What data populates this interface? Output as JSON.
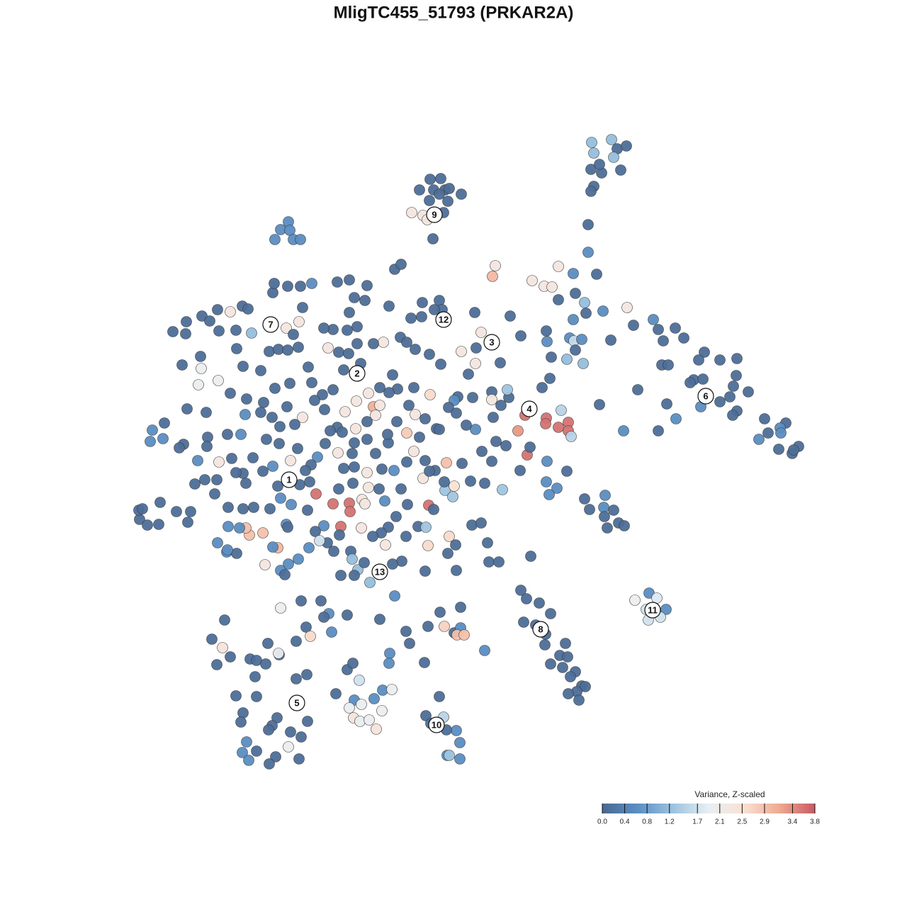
{
  "chart_data": {
    "type": "scatter",
    "title": "MligTC455_51793 (PRKAR2A)",
    "xlim": [
      0,
      1280
    ],
    "ylim": [
      1280,
      0
    ],
    "x": [
      607,
      622,
      592,
      612,
      628,
      620,
      634,
      651,
      606,
      632,
      581,
      597,
      603,
      626,
      611,
      835,
      863,
      838,
      871,
      884,
      866,
      834,
      849,
      846,
      876,
      838,
      834,
      830,
      830,
      407,
      396,
      409,
      388,
      414,
      424,
      741,
      771,
      770,
      788,
      802,
      802,
      731,
      744,
      792,
      806,
      699,
      695,
      751,
      768,
      779,
      788,
      809,
      842,
      885,
      851,
      812,
      788,
      825,
      827,
      809,
      771,
      772,
      804,
      810,
      821,
      812,
      800,
      823,
      778,
      776,
      765,
      862,
      894,
      922,
      929,
      953,
      965,
      936,
      934,
      943,
      994,
      986,
      1016,
      1040,
      979,
      992,
      974,
      1039,
      1030,
      1035,
      1056,
      989,
      1016,
      1040,
      1034,
      1079,
      1109,
      1101,
      1102,
      1084,
      1071,
      1099,
      1118,
      1127,
      1120,
      954,
      929,
      941,
      900,
      846,
      880,
      825,
      832,
      854,
      852,
      866,
      853,
      873,
      881,
      857,
      800,
      772,
      771,
      786,
      775,
      734,
      748,
      735,
      743,
      761,
      777,
      739,
      756,
      770,
      769,
      798,
      790,
      801,
      777,
      794,
      812,
      805,
      821,
      826,
      814,
      802,
      817,
      916,
      896,
      927,
      912,
      940,
      915,
      932,
      620,
      601,
      626,
      608,
      644,
      630,
      649,
      631,
      634,
      649,
      317,
      299,
      314,
      325,
      306,
      353,
      362,
      378,
      394,
      393,
      375,
      360,
      418,
      433,
      333,
      362,
      343,
      340,
      391,
      384,
      379,
      434,
      410,
      425,
      348,
      407,
      389,
      422,
      342,
      362,
      351,
      380,
      474,
      490,
      498,
      507,
      500,
      528,
      540,
      553,
      510,
      493,
      539,
      499,
      508,
      521,
      531,
      550,
      549,
      599,
      578,
      573,
      604,
      621,
      650,
      627,
      641,
      650,
      645,
      655,
      684,
      536,
      490,
      464,
      457,
      468,
      432,
      418,
      453,
      425,
      396,
      438,
      557,
      244,
      263,
      262,
      285,
      296,
      309,
      307,
      325,
      333,
      342,
      350,
      355,
      383,
      404,
      422,
      385,
      387,
      406,
      424,
      440,
      427,
      414,
      380,
      393,
      406,
      421,
      334,
      343,
      368,
      257,
      284,
      283,
      280,
      308,
      325,
      348,
      372,
      388,
      409,
      435,
      440,
      455,
      463,
      470,
      457,
      490,
      504,
      493,
      500,
      515,
      518,
      493,
      476,
      557,
      566,
      549,
      596,
      620,
      624,
      613,
      580,
      595,
      541,
      527,
      509,
      485,
      478,
      492,
      504,
      565,
      574,
      586,
      606,
      622,
      651,
      672,
      671,
      661,
      679,
      670,
      720,
      735,
      706,
      694,
      694,
      718,
      707,
      716,
      696,
      667,
      646,
      641,
      633,
      607,
      584,
      561,
      554,
      549,
      536,
      520,
      503,
      527,
      536,
      530,
      518,
      502,
      487,
      476,
      466,
      458,
      470,
      444,
      427,
      416,
      405,
      395,
      384,
      368,
      346,
      340,
      321,
      293,
      264,
      291,
      232,
      215,
      212,
      230,
      259,
      253,
      292,
      279,
      309,
      327,
      343,
      357,
      376,
      394,
      420,
      410,
      385,
      371,
      333,
      347,
      306,
      289,
      275,
      303,
      322,
      343,
      358,
      381,
      392,
      396,
      411,
      423,
      437,
      446,
      434,
      470,
      493,
      494,
      478,
      498,
      520,
      511,
      515,
      535,
      543,
      566,
      575,
      559,
      548,
      573,
      590,
      601,
      605,
      612,
      628,
      639,
      641,
      627,
      614,
      597,
      606,
      600,
      584,
      574,
      556,
      539,
      518,
      500,
      485,
      497,
      477,
      459,
      448,
      439,
      431,
      483,
      500,
      518,
      530,
      548,
      574,
      592,
      616,
      600,
      586,
      560,
      547,
      577,
      630,
      652,
      664,
      684,
      694,
      680,
      709,
      714,
      700,
      671,
      658,
      644,
      620,
      666,
      679,
      688,
      690,
      704,
      749,
      644,
      632,
      643,
      634,
      604,
      600,
      567,
      554,
      544,
      538,
      526,
      510,
      481,
      479,
      457,
      445,
      462,
      451,
      471,
      495,
      497,
      505,
      514,
      500,
      481,
      522,
      421,
      407,
      396,
      402,
      374,
      392,
      371,
      352,
      347,
      322,
      338,
      307,
      320,
      334,
      321,
      404,
      406,
      436,
      197,
      208,
      224,
      196,
      201,
      226,
      249,
      265,
      269,
      385
    ],
    "y": [
      253,
      252,
      268,
      268,
      268,
      274,
      266,
      274,
      283,
      284,
      300,
      304,
      310,
      300,
      337,
      201,
      197,
      216,
      210,
      206,
      222,
      239,
      244,
      232,
      240,
      263,
      270,
      317,
      356,
      313,
      324,
      325,
      338,
      338,
      338,
      586,
      590,
      598,
      603,
      596,
      608,
      608,
      642,
      579,
      616,
      375,
      390,
      396,
      404,
      405,
      376,
      386,
      387,
      434,
      439,
      414,
      423,
      427,
      442,
      451,
      467,
      482,
      477,
      481,
      479,
      494,
      507,
      513,
      504,
      534,
      547,
      480,
      459,
      451,
      465,
      463,
      477,
      481,
      515,
      515,
      497,
      508,
      508,
      506,
      536,
      535,
      540,
      530,
      560,
      545,
      553,
      574,
      567,
      580,
      586,
      591,
      597,
      604,
      611,
      611,
      620,
      634,
      640,
      630,
      635,
      591,
      608,
      570,
      550,
      571,
      608,
      704,
      719,
      699,
      716,
      720,
      729,
      738,
      742,
      745,
      665,
      651,
      680,
      689,
      698,
      664,
      631,
      833,
      845,
      851,
      866,
      878,
      882,
      895,
      910,
      908,
      925,
      927,
      937,
      942,
      948,
      955,
      968,
      969,
      976,
      979,
      988,
      837,
      847,
      844,
      860,
      860,
      875,
      871,
      983,
      1010,
      1012,
      1021,
      1031,
      1030,
      1048,
      1066,
      1066,
      1071,
      875,
      902,
      914,
      927,
      938,
      930,
      932,
      908,
      924,
      922,
      937,
      955,
      958,
      952,
      982,
      983,
      1006,
      1019,
      1013,
      1024,
      1030,
      1018,
      1033,
      1040,
      1047,
      1054,
      1068,
      1071,
      1062,
      1060,
      1073,
      1078,
      979,
      945,
      936,
      960,
      988,
      986,
      974,
      973,
      994,
      999,
      1003,
      1013,
      1018,
      1016,
      1029,
      922,
      936,
      935,
      908,
      891,
      884,
      864,
      857,
      884,
      893,
      886,
      896,
      896,
      918,
      874,
      868,
      866,
      871,
      892,
      885,
      905,
      848,
      848,
      858,
      898,
      841,
      468,
      454,
      471,
      446,
      453,
      467,
      437,
      440,
      466,
      432,
      436,
      470,
      458,
      463,
      454,
      413,
      400,
      404,
      404,
      400,
      434,
      472,
      496,
      493,
      494,
      490,
      492,
      517,
      523,
      515,
      520,
      503,
      543,
      537,
      555,
      563,
      568,
      548,
      541,
      518,
      540,
      557,
      491,
      465,
      463,
      466,
      461,
      441,
      420,
      424,
      403,
      395,
      398,
      380,
      373,
      432,
      427,
      424,
      437,
      437,
      449,
      447,
      483,
      485,
      513,
      522,
      497,
      499,
      485,
      476,
      483,
      493,
      500,
      514,
      496,
      491,
      513,
      528,
      469,
      441,
      446,
      474,
      512,
      553,
      564,
      561,
      572,
      550,
      589,
      561,
      560,
      565,
      575,
      557,
      547,
      549,
      529,
      554,
      547,
      555,
      566,
      574,
      572,
      586,
      595,
      605,
      581,
      603,
      608,
      578,
      550,
      565,
      589,
      599,
      574,
      602,
      589,
      582,
      585,
      613,
      613,
      617,
      577,
      582,
      597,
      607,
      623,
      619,
      627,
      632,
      630,
      650,
      652,
      647,
      668,
      646,
      620,
      626,
      633,
      650,
      658,
      665,
      667,
      682,
      677,
      677,
      683,
      697,
      716,
      718,
      716,
      718,
      686,
      703,
      712,
      684,
      680,
      697,
      720,
      711,
      710,
      722,
      690,
      682,
      688,
      705,
      711,
      690,
      707,
      690,
      712,
      729,
      744,
      757,
      743,
      744,
      713,
      719,
      692,
      701,
      686,
      680,
      664,
      675,
      665,
      650,
      637,
      652,
      664,
      662,
      667,
      659,
      661,
      640,
      639,
      626,
      645,
      656,
      664,
      610,
      625,
      620,
      640,
      625,
      611,
      617,
      605,
      591,
      585,
      595,
      613,
      572,
      653,
      654,
      679,
      682,
      651,
      637,
      691,
      629,
      623,
      606,
      600,
      583,
      606,
      741,
      738,
      766,
      793,
      793,
      785,
      805,
      781,
      769,
      757,
      770,
      806,
      792,
      796,
      769,
      752,
      757,
      745,
      743,
      755,
      742,
      750,
      766,
      763,
      778,
      778,
      789,
      804,
      794,
      812,
      812,
      822,
      789,
      796,
      805,
      811,
      797,
      773,
      752,
      755,
      745,
      743,
      745,
      766,
      779,
      781,
      776,
      740,
      744,
      773,
      733,
      741,
      740,
      720,
      718,
      709,
      722,
      737,
      722,
      772
    ],
    "values": [
      0.1,
      0.1,
      0.1,
      0.1,
      0.1,
      0.1,
      0.1,
      0.1,
      0.1,
      0.1,
      2.3,
      2.3,
      2.3,
      0.1,
      0.1,
      1.2,
      1.2,
      1.2,
      0.1,
      0.1,
      1.2,
      0.1,
      0.1,
      0.1,
      0.1,
      0.1,
      0.1,
      0.1,
      0.6,
      0.6,
      0.6,
      0.6,
      0.6,
      0.6,
      0.6,
      3.6,
      3.6,
      3.6,
      3.6,
      3.6,
      3.6,
      3.3,
      3.6,
      1.5,
      1.5,
      2.3,
      3,
      2.3,
      2.3,
      2.3,
      2.3,
      0.6,
      0.1,
      2.3,
      0.6,
      0.1,
      0.1,
      1.2,
      0.1,
      0.6,
      0.1,
      0.6,
      0.6,
      1.6,
      0.6,
      0.1,
      1.2,
      1.2,
      0.1,
      0.1,
      0.1,
      0.1,
      0.1,
      0.6,
      0.1,
      0.1,
      0.1,
      0.1,
      0.1,
      0.1,
      0.1,
      0.1,
      0.1,
      0.1,
      0.1,
      0.1,
      0.1,
      0.1,
      0.1,
      0.1,
      0.1,
      0.6,
      0.1,
      0.1,
      0.1,
      0.1,
      0.1,
      0.6,
      0.6,
      0.1,
      0.6,
      0.1,
      0.1,
      0.1,
      0.1,
      0.6,
      0.1,
      0.1,
      0.1,
      0.1,
      0.6,
      0.1,
      0.1,
      0.6,
      0.6,
      0.1,
      0.1,
      0.1,
      0.1,
      0.1,
      0.1,
      0.6,
      0.6,
      0.6,
      0.6,
      0.1,
      0.1,
      0.1,
      0.1,
      0.1,
      0.1,
      0.1,
      0.1,
      0.1,
      0.1,
      0.1,
      0.1,
      0.1,
      0.1,
      0.1,
      0.1,
      0.1,
      0.1,
      0.1,
      0.1,
      0.1,
      0.1,
      0.6,
      2.0,
      1.8,
      1.7,
      0.6,
      1.7,
      1.7,
      0.1,
      0.1,
      1.5,
      0.1,
      0.6,
      0.1,
      0.6,
      0.6,
      1.3,
      0.6,
      0.1,
      0.1,
      2.4,
      0.1,
      0.1,
      0.1,
      0.1,
      0.1,
      0.1,
      2.0,
      0.1,
      0.1,
      0.1,
      0.1,
      0.1,
      0.1,
      0.1,
      0.1,
      0.1,
      0.1,
      0.1,
      0.1,
      0.1,
      0.1,
      0.6,
      2.0,
      0.1,
      0.1,
      0.6,
      0.1,
      0.6,
      0.1,
      0.1,
      0.1,
      0.1,
      1.7,
      0.6,
      0.6,
      0.6,
      2.0,
      2.0,
      2.0,
      2.0,
      2.4,
      2.0,
      2.0,
      2.4,
      0.6,
      0.6,
      0.1,
      0.1,
      0.1,
      0.1,
      0.1,
      0.1,
      2.7,
      0.1,
      0.6,
      2.9,
      2.9,
      0.6,
      0.1,
      0.1,
      0.6,
      0.1,
      0.6,
      0.1,
      0.1,
      0.1,
      0.1,
      2.0,
      2.6,
      0.6,
      0.1,
      0.1,
      0.1,
      0.1,
      0.1,
      0.1,
      0.1,
      2.3,
      0.1,
      0.1,
      0.1,
      1.2,
      0.1,
      2.3,
      2.3,
      0.1,
      0.1,
      0.1,
      0.1,
      0.6,
      0.1,
      0.1,
      0.1,
      0.1,
      0.1,
      0.1,
      0.1,
      0.1,
      0.1,
      0.1,
      2.0,
      0.1,
      2.0,
      2.0,
      0.1,
      0.1,
      0.1,
      0.1,
      0.1,
      0.1,
      0.1,
      0.1,
      2.3,
      0.1,
      0.1,
      0.1,
      0.1,
      0.1,
      0.1,
      0.1,
      0.1,
      0.1,
      0.1,
      0.1,
      0.1,
      0.1,
      0.1,
      0.1,
      0.1,
      0.1,
      0.1,
      0.1,
      2.3,
      0.1,
      0.1,
      0.1,
      0.1,
      0.1,
      0.1,
      0.1,
      0.1,
      0.1,
      0.1,
      0.1,
      2.3,
      0.1,
      2.3,
      0.1,
      2.3,
      0.1,
      0.1,
      0.1,
      0.1,
      0.1,
      2.3,
      0.1,
      0.1,
      1.3,
      0.1,
      0.1,
      0.1,
      0.6,
      0.1,
      2.6,
      0.1,
      0.1,
      0.1,
      0.1,
      0.1,
      2.3,
      2.3,
      3.1,
      2.3,
      2.3,
      0.1,
      2.3,
      2.3,
      0.1,
      0.1,
      0.1,
      0.1,
      0.1,
      2.3,
      0.1,
      0.1,
      0.1,
      0.1,
      0.1,
      0.6,
      0.6,
      0.1,
      0.1,
      0.1,
      0.1,
      0.1,
      0.6,
      0.6,
      0.6,
      0.1,
      0.1,
      0.1,
      0.6,
      2.3,
      0.1,
      0.1,
      0.1,
      0.1,
      0.1,
      0.1,
      2.3,
      0.6,
      0.1,
      0.1,
      0.1,
      0.1,
      0.1,
      0.1,
      0.1,
      0.1,
      0.1,
      0.1,
      0.1,
      0.1,
      0.6,
      0.6,
      0.1,
      0.1,
      3.6,
      0.1,
      3.6,
      3.6,
      3.6,
      0.1,
      0.1,
      2.3,
      2.3,
      2.3,
      0.1,
      0.6,
      0.1,
      0.1,
      0.1,
      0.1,
      0.1,
      0.1,
      1.3,
      3.6,
      0.1,
      1.3,
      1.3,
      2.5,
      0.1,
      0.1,
      2.3,
      0.1,
      0.1,
      2.3,
      0.1,
      0.6,
      0.1,
      2.3,
      0.1,
      0.1,
      0.1,
      2.3,
      0.1,
      0.6,
      0.1,
      0.1,
      0.1,
      0.1,
      0.1,
      0.1,
      0.1,
      2.8,
      0.1,
      0.1,
      0.1,
      2.3,
      0.1,
      0.1,
      0.1,
      2.9,
      0.1,
      0.1,
      0.1,
      0.1,
      0.1,
      1.3,
      0.1,
      0.1,
      0.6,
      0.1,
      0.1,
      0.1,
      0.1,
      0.1,
      0.1,
      0.1,
      0.1,
      0.1,
      0.1,
      0.1,
      0.1,
      2.6,
      2.6,
      0.1,
      0.1,
      0.1,
      2.3,
      0.1,
      0.1,
      2.3,
      3.6,
      0.1,
      0.6,
      0.1,
      0.1,
      1.7,
      0.1,
      0.1,
      1.2,
      1.2,
      0.1,
      0.1,
      0.1,
      1.2,
      0.6,
      0.6,
      0.6,
      0.1,
      2.3,
      3,
      2.9,
      2.9,
      2.9,
      0.6,
      0.6,
      0.6,
      0.6,
      0.1,
      0.6,
      0.6,
      0.1,
      0.6,
      0.1,
      0.1,
      0.1,
      0.1,
      0.1,
      0.1,
      0.1,
      0.1,
      0.1,
      0.6
    ],
    "cluster_labels": [
      {
        "label": "1",
        "x": 408,
        "y": 677
      },
      {
        "label": "2",
        "x": 504,
        "y": 527
      },
      {
        "label": "3",
        "x": 694,
        "y": 483
      },
      {
        "label": "4",
        "x": 747,
        "y": 577
      },
      {
        "label": "5",
        "x": 419,
        "y": 992
      },
      {
        "label": "6",
        "x": 996,
        "y": 559
      },
      {
        "label": "7",
        "x": 382,
        "y": 458
      },
      {
        "label": "8",
        "x": 763,
        "y": 888
      },
      {
        "label": "9",
        "x": 613,
        "y": 303
      },
      {
        "label": "10",
        "x": 616,
        "y": 1023
      },
      {
        "label": "11",
        "x": 921,
        "y": 861
      },
      {
        "label": "12",
        "x": 626,
        "y": 451
      },
      {
        "label": "13",
        "x": 536,
        "y": 807
      }
    ],
    "colorbar": {
      "title": "Variance, Z-scaled",
      "lim": [
        0,
        3.8
      ],
      "ticks": [
        {
          "value": 0,
          "label": "0.0"
        },
        0.4,
        0.8,
        1.2,
        1.7,
        2.1,
        2.5,
        2.9,
        3.4,
        3.8
      ],
      "colors": [
        "#4a6890",
        "#5b8fc4",
        "#9cc3df",
        "#e8eff4",
        "#f9e1d3",
        "#eeaa90",
        "#c85a64"
      ]
    }
  }
}
